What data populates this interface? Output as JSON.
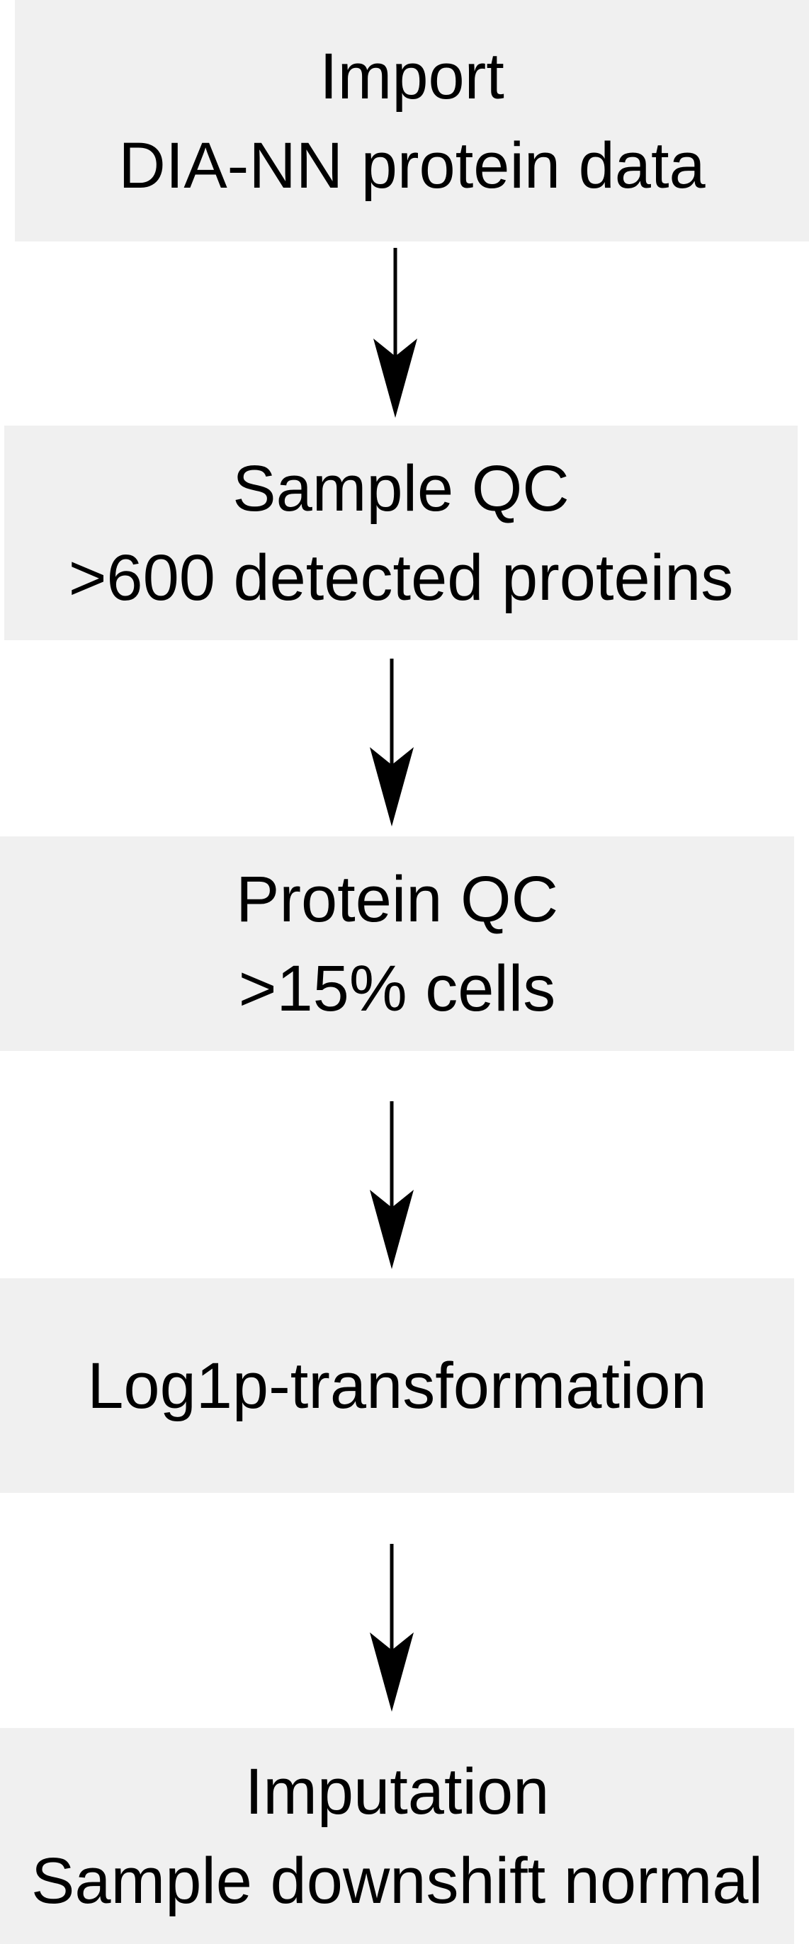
{
  "flow": {
    "steps": [
      {
        "lines": [
          "Import",
          "DIA-NN protein data"
        ]
      },
      {
        "lines": [
          "Sample QC",
          ">600 detected proteins"
        ]
      },
      {
        "lines": [
          "Protein QC",
          ">15% cells"
        ]
      },
      {
        "lines": [
          "Log1p-transformation"
        ]
      },
      {
        "lines": [
          "Imputation",
          "Sample downshift normal"
        ]
      }
    ],
    "colors": {
      "box_fill": "#f0f0f0",
      "text": "#000000",
      "arrow": "#000000",
      "background": "#ffffff"
    }
  }
}
